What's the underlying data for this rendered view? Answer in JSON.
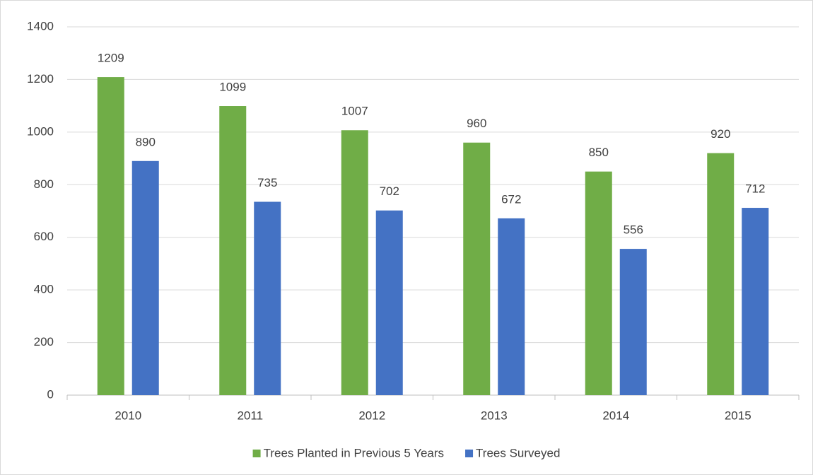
{
  "chart_data": {
    "type": "bar",
    "categories": [
      "2010",
      "2011",
      "2012",
      "2013",
      "2014",
      "2015"
    ],
    "series": [
      {
        "name": "Trees Planted in Previous 5 Years",
        "color": "#70ad47",
        "values": [
          1209,
          1099,
          1007,
          960,
          850,
          920
        ]
      },
      {
        "name": "Trees Surveyed",
        "color": "#4472c4",
        "values": [
          890,
          735,
          702,
          672,
          556,
          712
        ]
      }
    ],
    "ylim": [
      0,
      1400
    ],
    "yticks": [
      0,
      200,
      400,
      600,
      800,
      1000,
      1200,
      1400
    ],
    "grid": true,
    "legend": "bottom"
  }
}
